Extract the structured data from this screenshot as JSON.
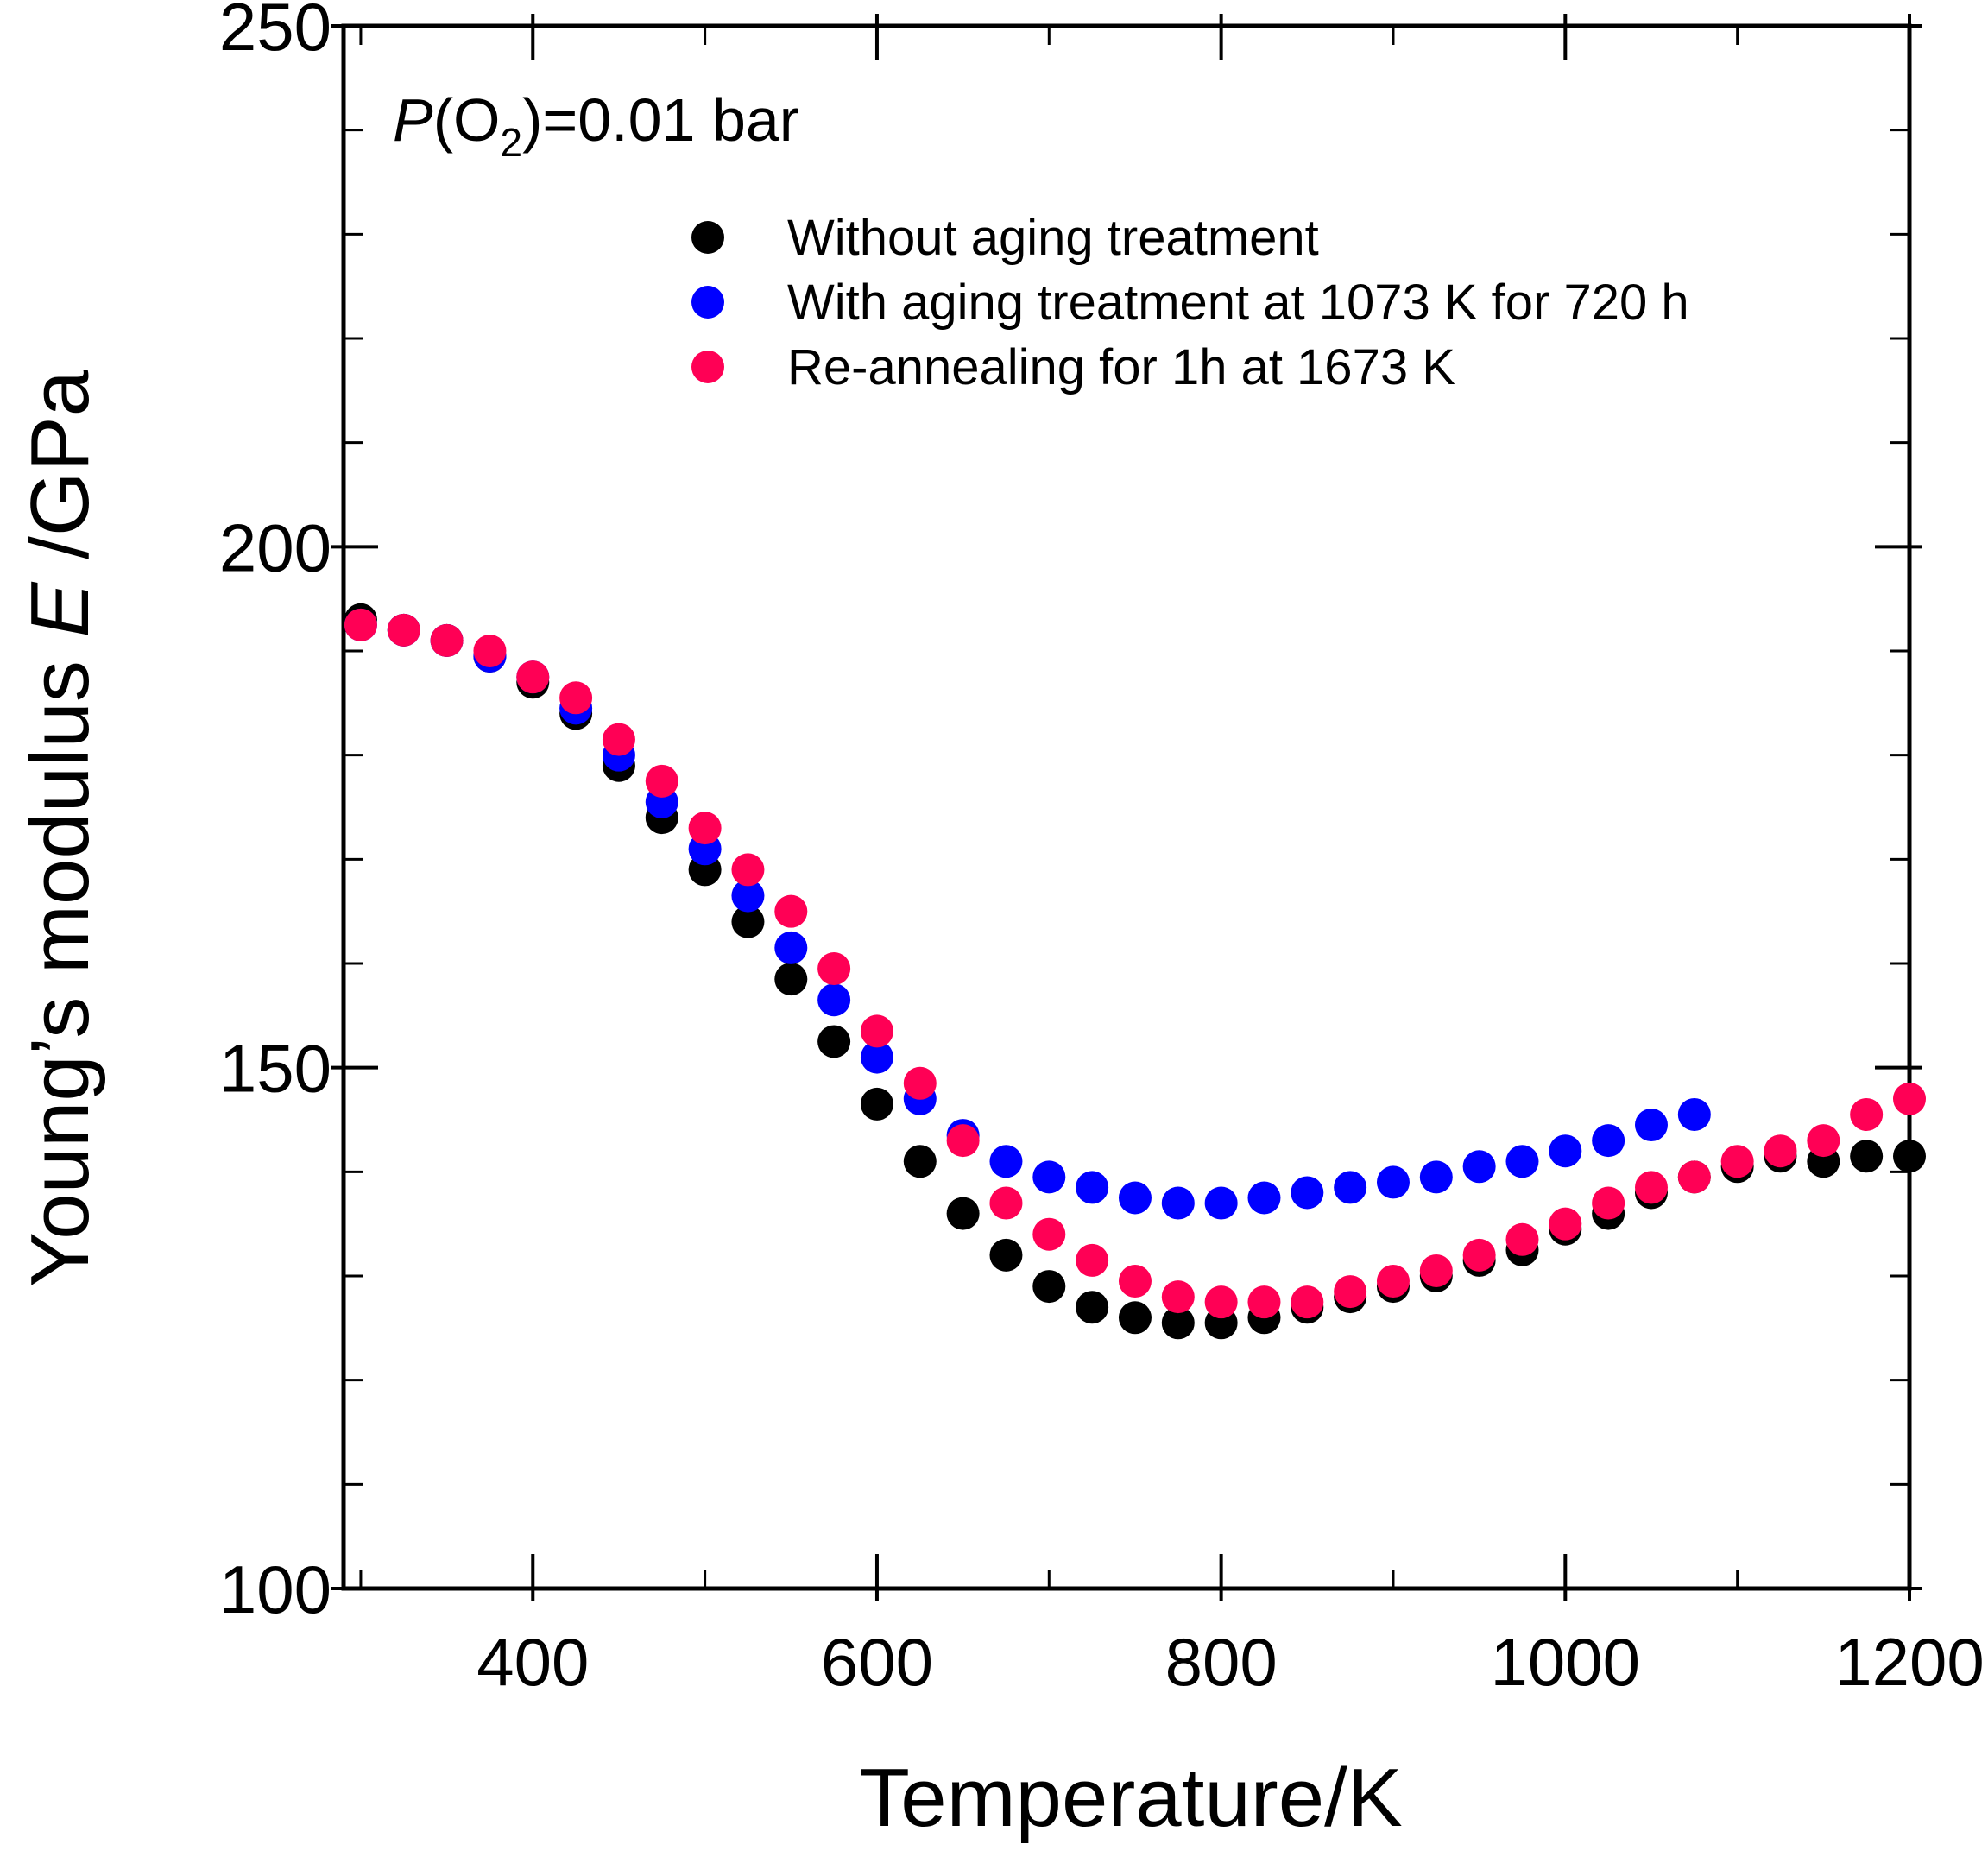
{
  "chart_data": {
    "type": "scatter",
    "title": "",
    "annotation": {
      "prefix": "P",
      "open": "(O",
      "sub": "2",
      "close": ")=0.01 bar"
    },
    "xlabel": "Temperature/K",
    "ylabel": {
      "prefix": "Young’s modulus ",
      "italic": "E",
      "suffix": " /GPa"
    },
    "xlim": [
      290,
      1200
    ],
    "ylim": [
      100,
      250
    ],
    "x_ticks": [
      400,
      600,
      800,
      1000,
      1200
    ],
    "y_ticks": [
      100,
      150,
      200,
      250
    ],
    "x_minor_step": 100,
    "y_minor_step": 10,
    "legend_position": "top-center",
    "series": [
      {
        "name": "Without aging treatment",
        "color": "#000000",
        "x": [
          300,
          325,
          350,
          375,
          400,
          425,
          450,
          475,
          500,
          525,
          550,
          575,
          600,
          625,
          650,
          675,
          700,
          725,
          750,
          775,
          800,
          825,
          850,
          875,
          900,
          925,
          950,
          975,
          1000,
          1025,
          1050,
          1075,
          1100,
          1125,
          1150,
          1175,
          1200
        ],
        "y": [
          193,
          192,
          191,
          189.5,
          187,
          184,
          179,
          174,
          169,
          164,
          158.5,
          152.5,
          146.5,
          141,
          136,
          132,
          129,
          127,
          126,
          125.5,
          125.5,
          126,
          127,
          128,
          129,
          130,
          131.5,
          132.5,
          134.5,
          136,
          138,
          139.5,
          140.5,
          141.5,
          141,
          141.5,
          141.5
        ]
      },
      {
        "name": "With aging treatment at 1073 K for 720 h",
        "color": "#0000ff",
        "x": [
          300,
          325,
          350,
          375,
          400,
          425,
          450,
          475,
          500,
          525,
          550,
          575,
          600,
          625,
          650,
          675,
          700,
          725,
          750,
          775,
          800,
          825,
          850,
          875,
          900,
          925,
          950,
          975,
          1000,
          1025,
          1050,
          1075
        ],
        "y": [
          192.5,
          192,
          191,
          189.5,
          187.5,
          184.5,
          180,
          175.5,
          171,
          166.5,
          161.5,
          156.5,
          151,
          147,
          143.5,
          141,
          139.5,
          138.5,
          137.5,
          137,
          137,
          137.5,
          138,
          138.5,
          139,
          139.5,
          140.5,
          141,
          142,
          143,
          144.5,
          145.5
        ]
      },
      {
        "name": "Re-annealing for 1h at 1673 K",
        "color": "#ff0055",
        "x": [
          300,
          325,
          350,
          375,
          400,
          425,
          450,
          475,
          500,
          525,
          550,
          575,
          600,
          625,
          650,
          675,
          700,
          725,
          750,
          775,
          800,
          825,
          850,
          875,
          900,
          925,
          950,
          975,
          1000,
          1025,
          1050,
          1075,
          1100,
          1125,
          1150,
          1175,
          1200
        ],
        "y": [
          192.5,
          192,
          191,
          190,
          187.5,
          185.5,
          181.5,
          177.5,
          173,
          169,
          165,
          159.5,
          153.5,
          148.5,
          143,
          137,
          134,
          131.5,
          129.5,
          128,
          127.5,
          127.5,
          127.5,
          128.5,
          129.5,
          130.5,
          132,
          133.5,
          135,
          137,
          138.5,
          139.5,
          141,
          142,
          143,
          145.5,
          147
        ]
      }
    ]
  }
}
